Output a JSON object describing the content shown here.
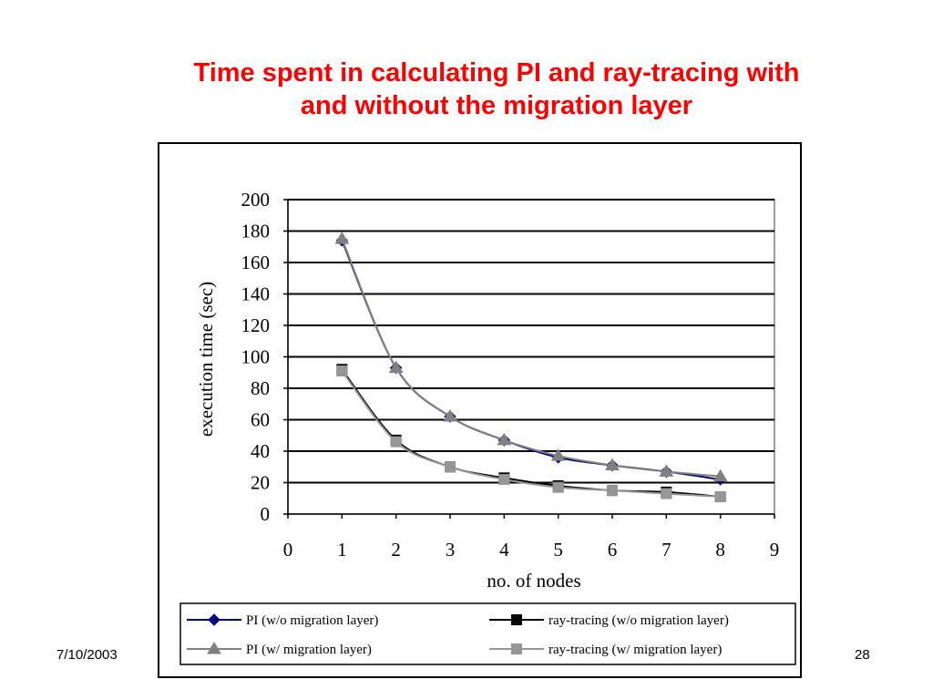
{
  "slide": {
    "title_line1": "Time spent in calculating PI and ray-tracing with",
    "title_line2": "and without the migration layer",
    "date": "7/10/2003",
    "page_number": "28"
  },
  "colors": {
    "title": "#ff0000",
    "pi_wo": "#000080",
    "ray_wo": "#000000",
    "pi_w": "#808080",
    "ray_w": "#969696"
  },
  "chart_data": {
    "type": "line",
    "title": "",
    "xlabel": "no. of nodes",
    "ylabel": "execution time (sec)",
    "xlim": [
      0,
      9
    ],
    "ylim": [
      0,
      200
    ],
    "xticks": [
      0,
      1,
      2,
      3,
      4,
      5,
      6,
      7,
      8,
      9
    ],
    "yticks": [
      0,
      20,
      40,
      60,
      80,
      100,
      120,
      140,
      160,
      180,
      200
    ],
    "grid": "horizontal",
    "legend_position": "bottom",
    "x": [
      1,
      2,
      3,
      4,
      5,
      6,
      7,
      8
    ],
    "series": [
      {
        "name": "PI (w/o migration layer)",
        "marker": "diamond",
        "color": "#000080",
        "values": [
          174,
          93,
          62,
          47,
          36,
          31,
          27,
          22
        ]
      },
      {
        "name": "ray-tracing (w/o migration layer)",
        "marker": "square",
        "color": "#000000",
        "values": [
          92,
          47,
          30,
          23,
          18,
          15,
          14,
          11
        ]
      },
      {
        "name": "PI (w/ migration layer)",
        "marker": "triangle",
        "color": "#808080",
        "values": [
          175,
          93,
          62,
          47,
          37,
          31,
          27,
          24
        ]
      },
      {
        "name": "ray-tracing (w/ migration layer)",
        "marker": "square",
        "color": "#969696",
        "values": [
          91,
          46,
          30,
          22,
          17,
          15,
          13,
          11
        ]
      }
    ]
  }
}
